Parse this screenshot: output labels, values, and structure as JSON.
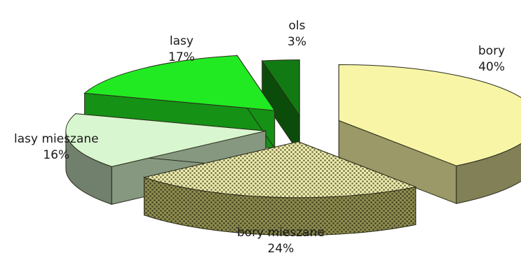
{
  "chart_data": {
    "type": "pie",
    "style": "exploded-3d",
    "slices": [
      {
        "label": "bory",
        "value": 40,
        "value_label": "40%",
        "color": "#f8f6a6",
        "pattern": "none"
      },
      {
        "label": "bory mieszane",
        "value": 24,
        "value_label": "24%",
        "color": "#c5c475",
        "pattern": "dots"
      },
      {
        "label": "lasy mieszane",
        "value": 16,
        "value_label": "16%",
        "color": "#d8f6cf",
        "pattern": "none"
      },
      {
        "label": "lasy",
        "value": 17,
        "value_label": "17%",
        "color": "#22ea22",
        "pattern": "none"
      },
      {
        "label": "ols",
        "value": 3,
        "value_label": "3%",
        "color": "#127a12",
        "pattern": "none"
      }
    ],
    "legend": "none",
    "grid": false
  }
}
